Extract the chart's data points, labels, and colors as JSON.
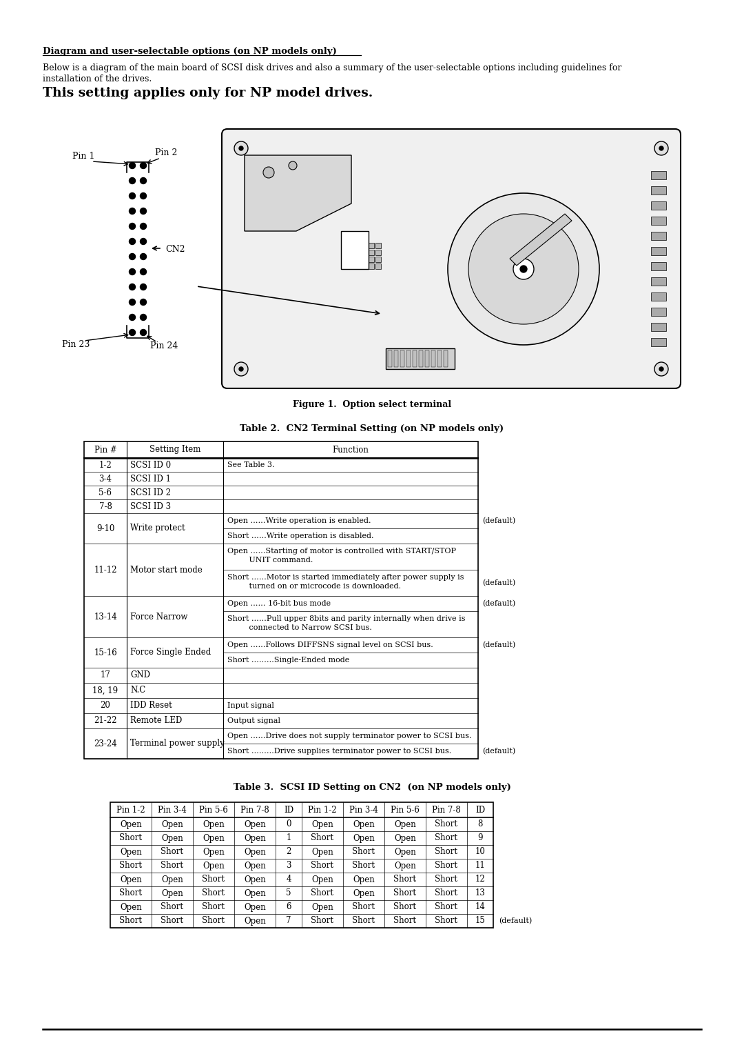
{
  "title_underline": "Diagram and user-selectable options (on NP models only)",
  "body_line1": "Below is a diagram of the main board of SCSI disk drives and also a summary of the user-selectable options including guidelines for",
  "body_line2": "installation of the drives.",
  "bold_text": "This setting applies only for NP model drives.",
  "fig_caption": "Figure 1.  Option select terminal",
  "table2_title": "Table 2.  CN2 Terminal Setting (on NP models only)",
  "table2_headers": [
    "Pin #",
    "Setting Item",
    "Function"
  ],
  "table3_title": "Table 3.  SCSI ID Setting on CN2  (on NP models only)",
  "table3_headers": [
    "Pin 1-2",
    "Pin 3-4",
    "Pin 5-6",
    "Pin 7-8",
    "ID",
    "Pin 1-2",
    "Pin 3-4",
    "Pin 5-6",
    "Pin 7-8",
    "ID"
  ],
  "table3_rows": [
    [
      "Open",
      "Open",
      "Open",
      "Open",
      "0",
      "Open",
      "Open",
      "Open",
      "Short",
      "8"
    ],
    [
      "Short",
      "Open",
      "Open",
      "Open",
      "1",
      "Short",
      "Open",
      "Open",
      "Short",
      "9"
    ],
    [
      "Open",
      "Short",
      "Open",
      "Open",
      "2",
      "Open",
      "Short",
      "Open",
      "Short",
      "10"
    ],
    [
      "Short",
      "Short",
      "Open",
      "Open",
      "3",
      "Short",
      "Short",
      "Open",
      "Short",
      "11"
    ],
    [
      "Open",
      "Open",
      "Short",
      "Open",
      "4",
      "Open",
      "Open",
      "Short",
      "Short",
      "12"
    ],
    [
      "Short",
      "Open",
      "Short",
      "Open",
      "5",
      "Short",
      "Open",
      "Short",
      "Short",
      "13"
    ],
    [
      "Open",
      "Short",
      "Short",
      "Open",
      "6",
      "Open",
      "Short",
      "Short",
      "Short",
      "14"
    ],
    [
      "Short",
      "Short",
      "Short",
      "Open",
      "7",
      "Short",
      "Short",
      "Short",
      "Short",
      "15"
    ]
  ],
  "bg_color": "#ffffff"
}
